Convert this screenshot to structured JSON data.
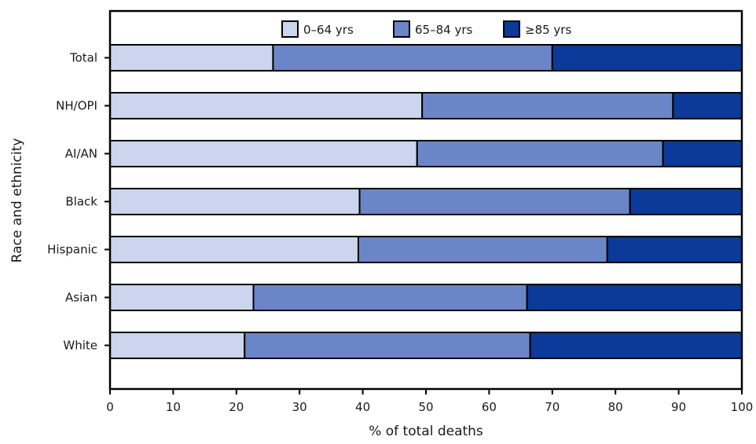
{
  "chart_data": {
    "type": "bar",
    "orientation": "horizontal",
    "stacked": true,
    "xlabel": "% of total deaths",
    "ylabel": "Race and ethnicity",
    "xlim": [
      0,
      100
    ],
    "xticks": [
      0,
      10,
      20,
      30,
      40,
      50,
      60,
      70,
      80,
      90,
      100
    ],
    "grid": false,
    "legend_position": "top",
    "categories": [
      "Total",
      "NH/OPI",
      "AI/AN",
      "Black",
      "Hispanic",
      "Asian",
      "White"
    ],
    "series": [
      {
        "name": "0–64 yrs",
        "color": "#cbd5ed",
        "values": [
          25.8,
          49.4,
          48.6,
          39.5,
          39.3,
          22.7,
          21.3
        ]
      },
      {
        "name": "65–84 yrs",
        "color": "#6b86c8",
        "values": [
          44.2,
          39.7,
          38.9,
          42.8,
          39.4,
          43.3,
          45.2
        ]
      },
      {
        "name": "≥85 yrs",
        "color": "#0b3a9b",
        "values": [
          30.0,
          10.9,
          12.5,
          17.7,
          21.3,
          34.0,
          33.5
        ]
      }
    ]
  }
}
